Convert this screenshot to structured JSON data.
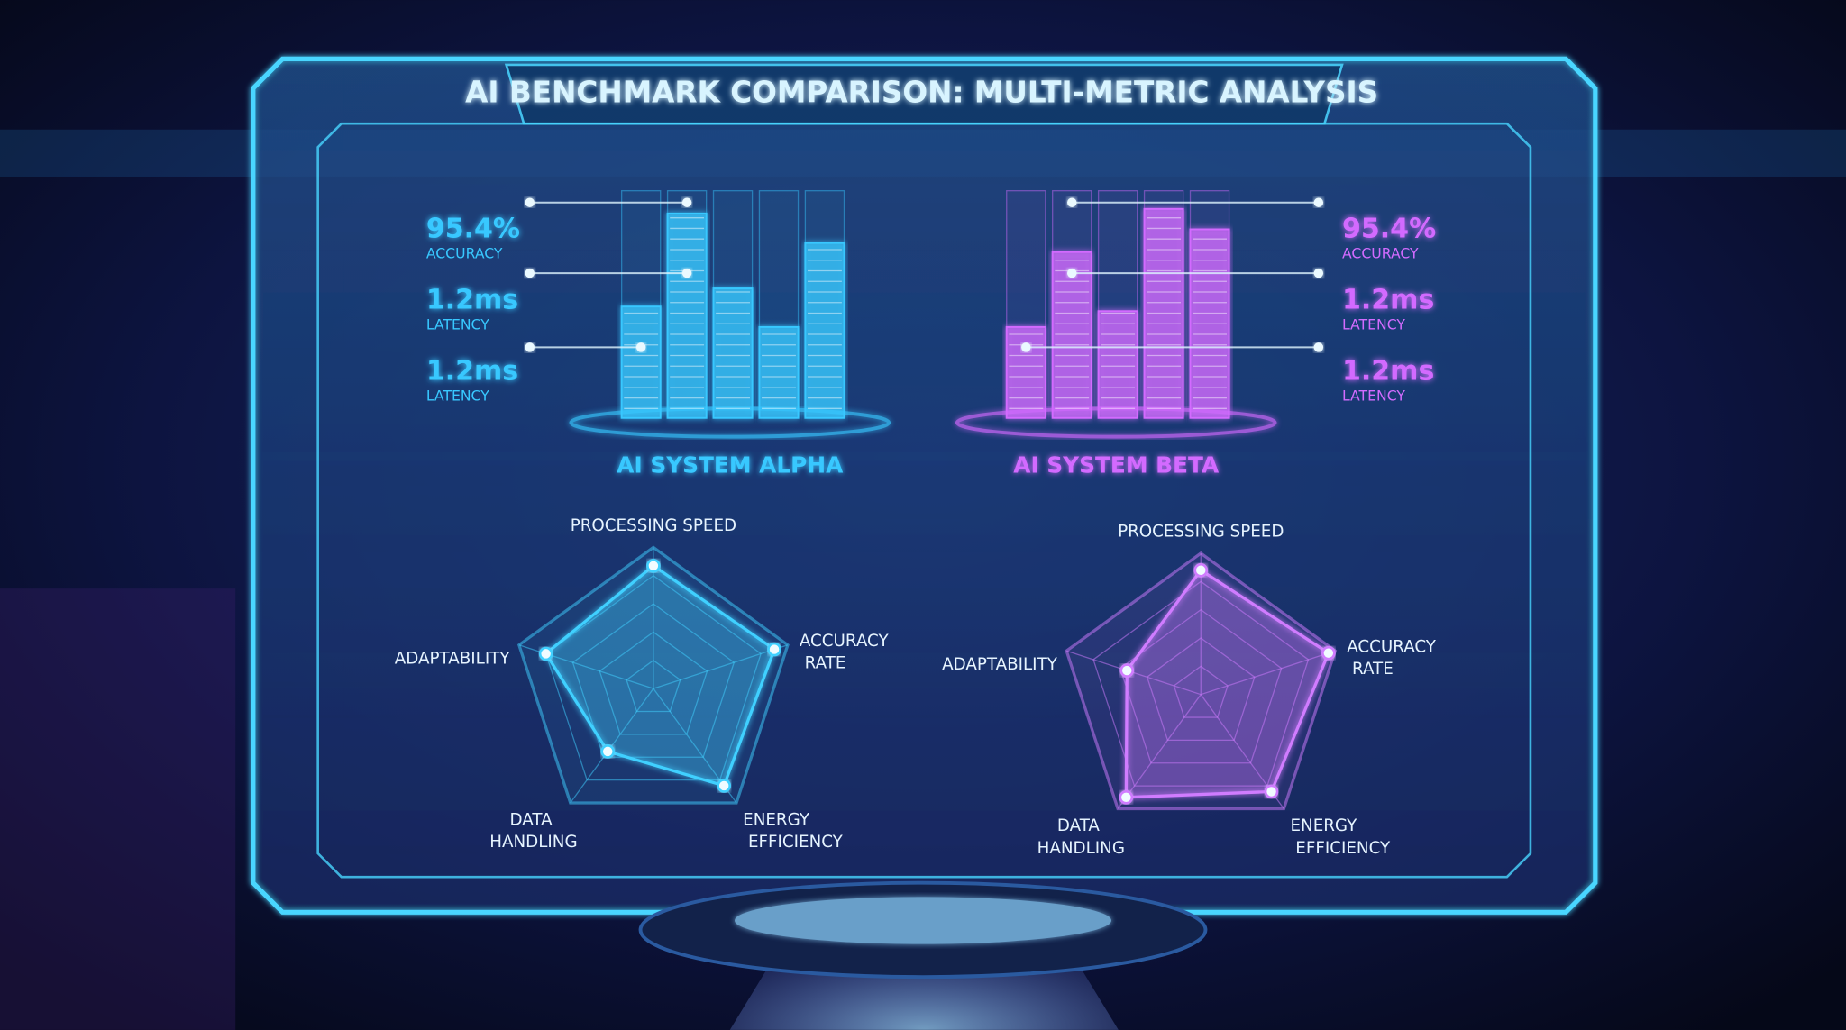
{
  "title": "AI BENCHMARK COMPARISON: MULTI-METRIC ANALYSIS",
  "chart_data": [
    {
      "type": "bar",
      "title": "AI SYSTEM ALPHA",
      "values": [
        49,
        90,
        57,
        40,
        77
      ],
      "ylim": [
        0,
        100
      ],
      "color": "#38c8ff",
      "callouts": [
        {
          "value": "95.4%",
          "label": "ACCURACY"
        },
        {
          "value": "1.2ms",
          "label": "LATENCY"
        },
        {
          "value": "1.2ms",
          "label": "LATENCY"
        }
      ]
    },
    {
      "type": "bar",
      "title": "AI SYSTEM BETA",
      "values": [
        40,
        73,
        47,
        92,
        83
      ],
      "ylim": [
        0,
        100
      ],
      "color": "#d36bff",
      "callouts": [
        {
          "value": "95.4%",
          "label": "ACCURACY"
        },
        {
          "value": "1.2ms",
          "label": "LATENCY"
        },
        {
          "value": "1.2ms",
          "label": "LATENCY"
        }
      ]
    },
    {
      "type": "radar",
      "axes": [
        "PROCESSING SPEED",
        "ACCURACY RATE",
        "ENERGY EFFICIENCY",
        "DATA HANDLING",
        "ADAPTABILITY"
      ],
      "values": [
        87,
        90,
        85,
        55,
        80
      ],
      "rlim": [
        0,
        100
      ],
      "color": "#3fd0ff"
    },
    {
      "type": "radar",
      "axes": [
        "PROCESSING SPEED",
        "ACCURACY RATE",
        "ENERGY EFFICIENCY",
        "DATA HANDLING",
        "ADAPTABILITY"
      ],
      "values": [
        88,
        95,
        85,
        90,
        55
      ],
      "rlim": [
        0,
        100
      ],
      "color": "#d07cff"
    }
  ]
}
